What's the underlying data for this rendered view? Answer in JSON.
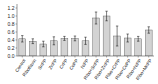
{
  "chart_data": {
    "type": "bar",
    "categories": [
      "Control",
      "Riboflavin",
      "SnPP",
      "ZnPP",
      "CrPP",
      "CoPP",
      "NiPP",
      "Ribo+SnPP",
      "Ribo+ZnPP",
      "Ribo+CrPP",
      "Ribo+CoPP",
      "Ribo+NiPP",
      "Ribo+MnPP"
    ],
    "values": [
      0.43,
      0.37,
      0.3,
      0.38,
      0.44,
      0.44,
      0.38,
      0.95,
      1.0,
      0.5,
      0.45,
      0.43,
      0.65
    ],
    "errors": [
      0.08,
      0.06,
      0.07,
      0.1,
      0.05,
      0.06,
      0.09,
      0.15,
      0.12,
      0.25,
      0.1,
      0.06,
      0.08
    ],
    "color": "#d3d3d3",
    "ylim": [
      0,
      1.3
    ],
    "yticks": [
      {
        "value": 0,
        "label": "0.0"
      },
      0.2,
      0.4,
      0.6,
      0.8,
      {
        "value": 1.0,
        "label": "1.0"
      },
      1.2
    ]
  }
}
